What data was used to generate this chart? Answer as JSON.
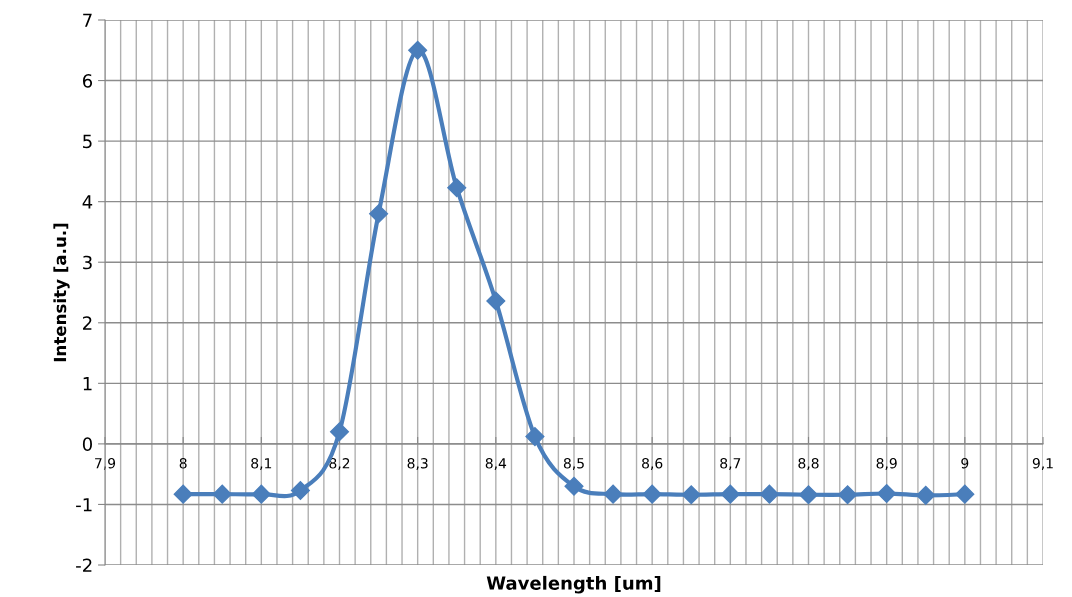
{
  "chart_data": {
    "type": "line",
    "xlabel": "Wavelength [um]",
    "ylabel": "Intensity [a.u.]",
    "x": [
      8,
      8.05,
      8.1,
      8.15,
      8.2,
      8.25,
      8.3,
      8.35,
      8.4,
      8.45,
      8.5,
      8.55,
      8.6,
      8.65,
      8.7,
      8.75,
      8.8,
      8.85,
      8.9,
      8.95,
      9
    ],
    "series": [
      {
        "color": "#4a7ebb",
        "values": [
          -0.83,
          -0.83,
          -0.83,
          -0.77,
          0.2,
          3.8,
          6.5,
          4.23,
          2.36,
          0.12,
          -0.7,
          -0.83,
          -0.83,
          -0.84,
          -0.83,
          -0.83,
          -0.84,
          -0.84,
          -0.82,
          -0.85,
          -0.83
        ]
      }
    ],
    "xlim": [
      7.9,
      9.1
    ],
    "xticks": [
      {
        "value": 7.9,
        "label": "7,9"
      },
      8,
      {
        "value": 8.1,
        "label": "8,1"
      },
      {
        "value": 8.2,
        "label": "8,2"
      },
      {
        "value": 8.3,
        "label": "8,3"
      },
      {
        "value": 8.4,
        "label": "8,4"
      },
      {
        "value": 8.5,
        "label": "8,5"
      },
      {
        "value": 8.6,
        "label": "8,6"
      },
      {
        "value": 8.7,
        "label": "8,7"
      },
      {
        "value": 8.8,
        "label": "8,8"
      },
      {
        "value": 8.9,
        "label": "8,9"
      },
      9,
      {
        "value": 9.1,
        "label": "9,1"
      }
    ],
    "ylim": [
      -2,
      7
    ],
    "yticks": [
      -2,
      -1,
      0,
      1,
      2,
      3,
      4,
      5,
      6,
      7
    ],
    "grid": true,
    "marker": "diamond",
    "line_style": "solid",
    "legend": false
  }
}
